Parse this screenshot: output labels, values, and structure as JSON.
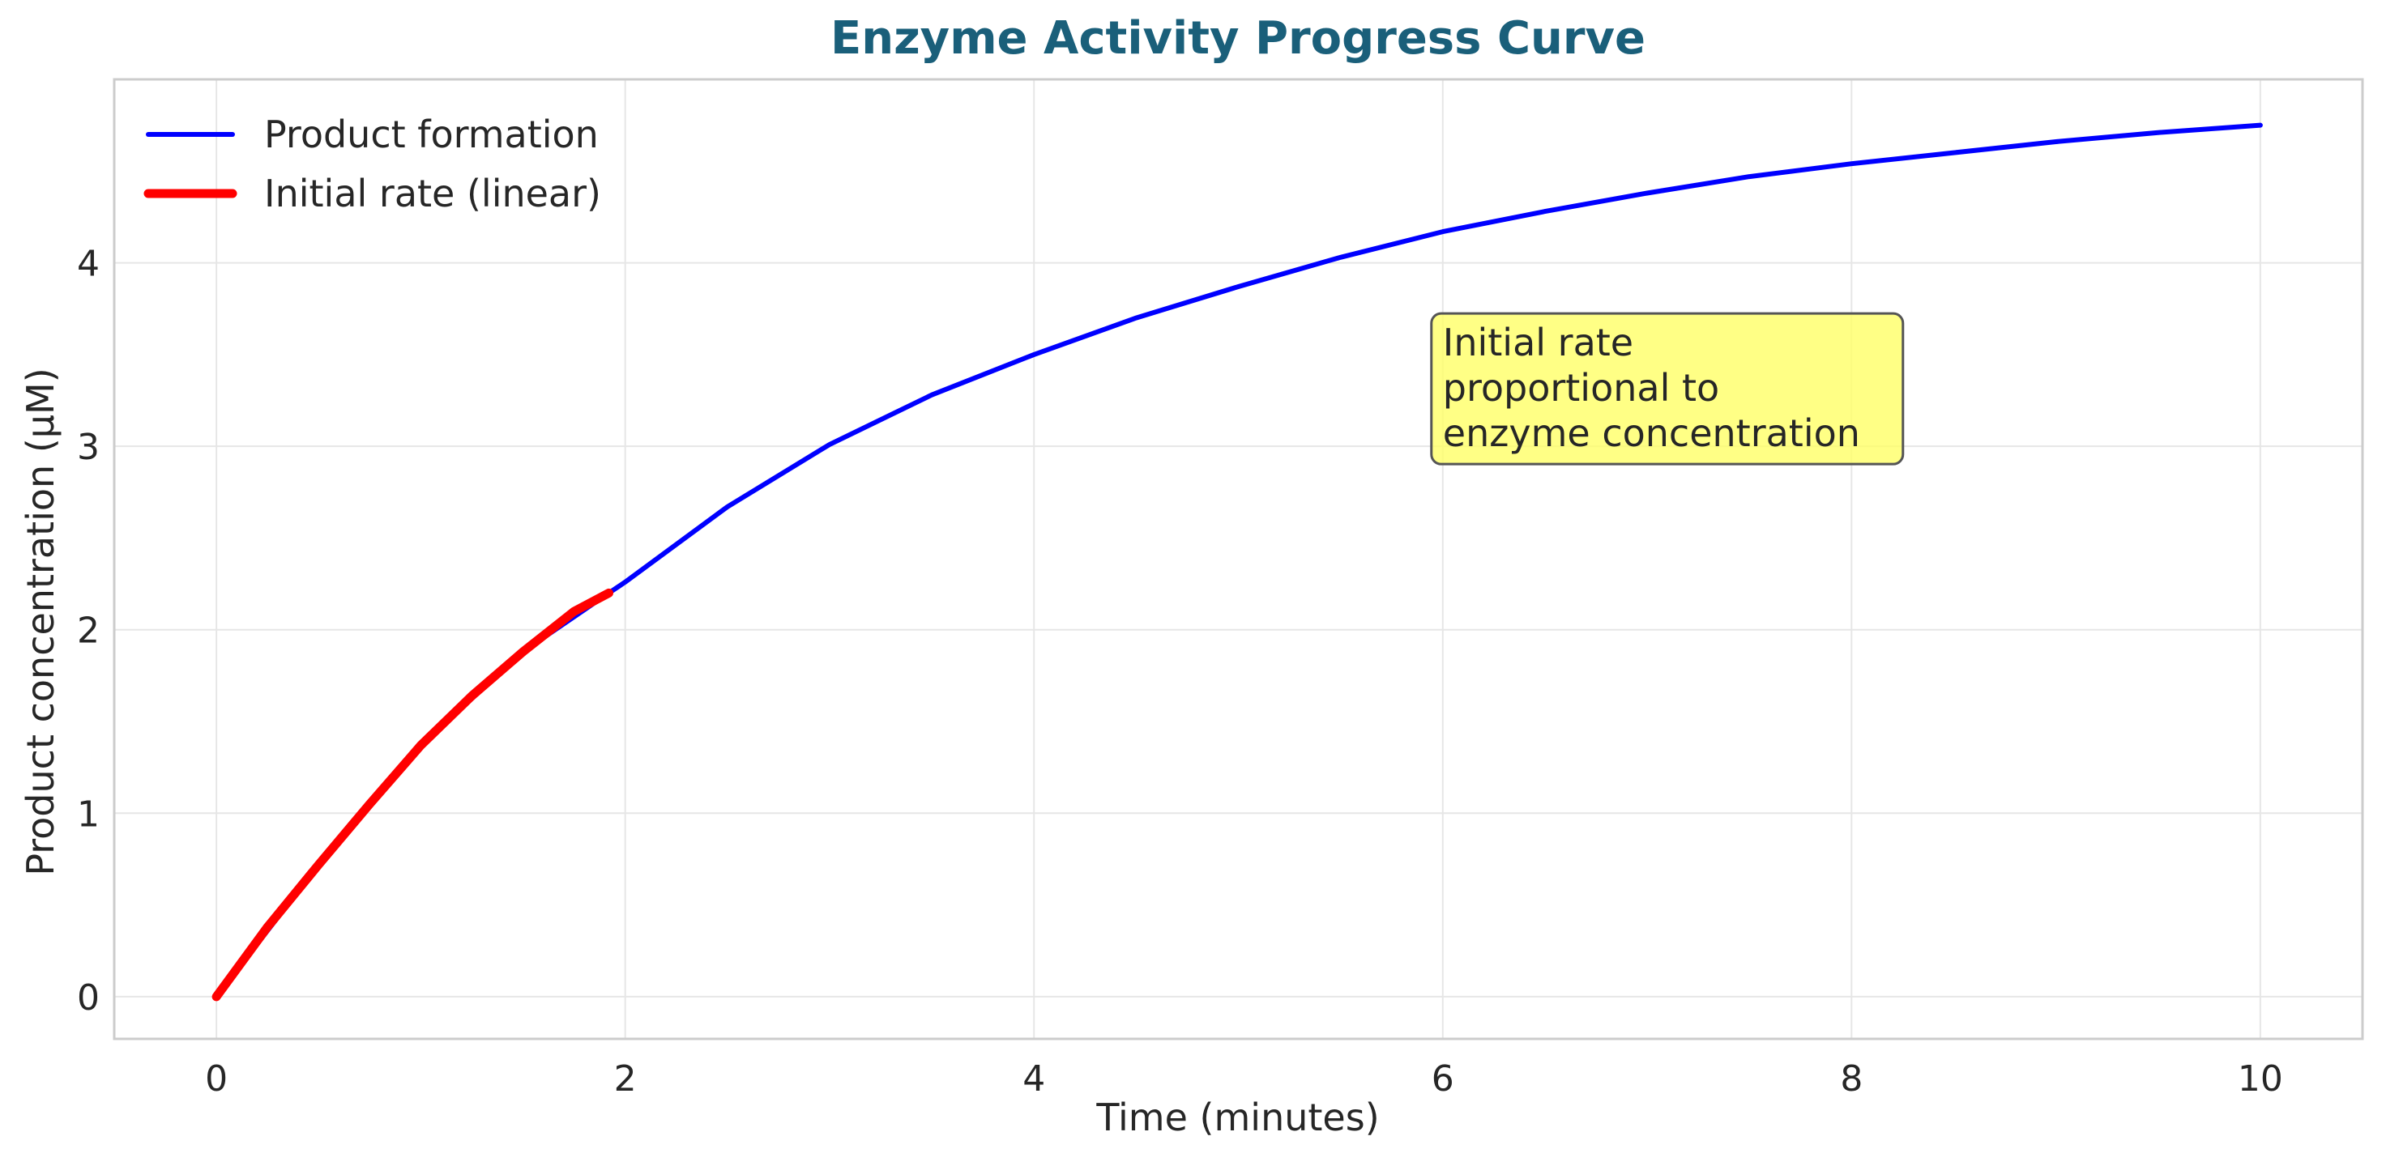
{
  "chart_data": {
    "type": "line",
    "title": "Enzyme Activity Progress Curve",
    "xlabel": "Time (minutes)",
    "ylabel": "Product concentration (μM)",
    "xlim": [
      -0.5,
      10.5
    ],
    "ylim": [
      -0.23,
      5.0
    ],
    "xticks": [
      0,
      2,
      4,
      6,
      8,
      10
    ],
    "yticks": [
      0,
      1,
      2,
      3,
      4
    ],
    "grid": true,
    "legend_position": "top-left",
    "series": [
      {
        "name": "Product formation",
        "color": "#0000ff",
        "x": [
          0,
          0.5,
          1,
          1.5,
          1.92,
          2,
          2.5,
          3,
          3.5,
          4,
          4.5,
          5,
          5.5,
          6,
          6.5,
          7,
          7.5,
          8,
          8.5,
          9,
          9.5,
          10
        ],
        "y": [
          0,
          0.72,
          1.37,
          1.88,
          2.2,
          2.26,
          2.67,
          3.01,
          3.28,
          3.5,
          3.7,
          3.87,
          4.03,
          4.17,
          4.28,
          4.38,
          4.47,
          4.54,
          4.6,
          4.66,
          4.71,
          4.75
        ]
      },
      {
        "name": "Initial rate (linear)",
        "color": "#ff0000",
        "x": [
          0,
          0.25,
          0.5,
          0.75,
          1,
          1.25,
          1.5,
          1.75,
          1.92
        ],
        "y": [
          0,
          0.38,
          0.72,
          1.05,
          1.37,
          1.64,
          1.88,
          2.1,
          2.2
        ]
      }
    ],
    "annotations": [
      {
        "lines": [
          "Initial rate",
          "proportional to",
          "enzyme concentration"
        ],
        "x": 6.0,
        "y": 3.0,
        "background": "#ffff66"
      }
    ]
  },
  "colors": {
    "title": "#1a5f7a",
    "text": "#262626",
    "grid": "#e6e6e6",
    "spine": "#cccccc"
  }
}
